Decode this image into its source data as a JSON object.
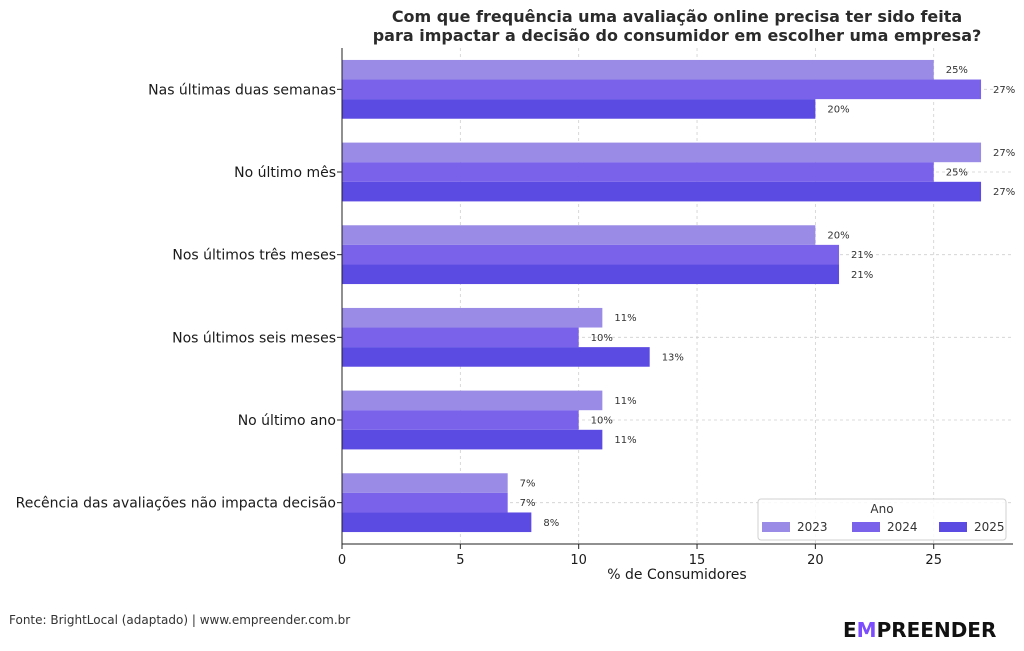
{
  "chart_data": {
    "type": "bar",
    "orientation": "horizontal",
    "title_lines": [
      "Com que frequência uma avaliação online precisa ter sido feita",
      "para impactar a decisão do consumidor em escolher uma empresa?"
    ],
    "xlabel": "% de Consumidores",
    "ylabel": "",
    "xlim": [
      0,
      28.35
    ],
    "x_ticks": [
      0,
      5,
      10,
      15,
      20,
      25
    ],
    "grid": true,
    "categories": [
      "Nas últimas duas semanas",
      "No último mês",
      "Nos últimos três meses",
      "Nos últimos seis meses",
      "No último ano",
      "Recência das avaliações não impacta decisão"
    ],
    "series": [
      {
        "name": "2023",
        "color": "#9a8ce6",
        "values": [
          25,
          27,
          20,
          11,
          11,
          7
        ],
        "labels": [
          "25%",
          "27%",
          "20%",
          "11%",
          "11%",
          "7%"
        ]
      },
      {
        "name": "2024",
        "color": "#7b62ea",
        "values": [
          27,
          25,
          21,
          10,
          10,
          7
        ],
        "labels": [
          "27%",
          "25%",
          "21%",
          "10%",
          "10%",
          "7%"
        ]
      },
      {
        "name": "2025",
        "color": "#5c4be3",
        "values": [
          20,
          27,
          21,
          13,
          11,
          8
        ],
        "labels": [
          "20%",
          "27%",
          "21%",
          "13%",
          "11%",
          "8%"
        ]
      }
    ],
    "legend": {
      "title": "Ano",
      "placement": "bottom-right"
    }
  },
  "footer": {
    "source": "Fonte: BrightLocal (adaptado) | www.empreender.com.br",
    "brand_pre": "E",
    "brand_mid": "M",
    "brand_post": "PREENDER"
  }
}
